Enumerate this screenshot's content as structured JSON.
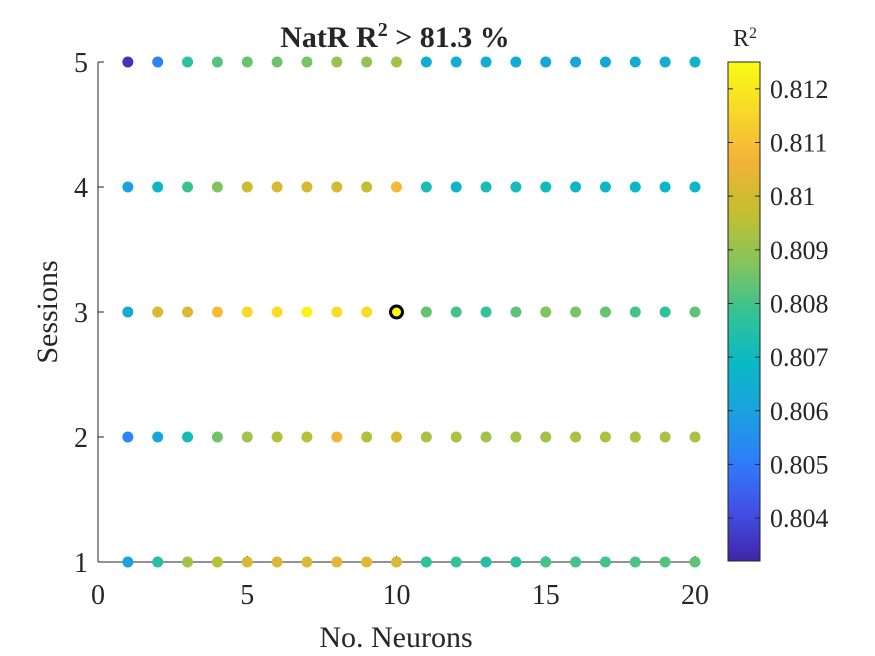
{
  "chart_data": {
    "type": "scatter",
    "title": {
      "prefix": "NatR R",
      "sup": "2",
      "suffix": " > 81.3 %"
    },
    "xlabel": "No. Neurons",
    "ylabel": "Sessions",
    "xlim": [
      0,
      20
    ],
    "ylim": [
      1,
      5
    ],
    "xticks": [
      "0",
      "5",
      "10",
      "15",
      "20"
    ],
    "yticks": [
      "1",
      "2",
      "3",
      "4",
      "5"
    ],
    "colorbar": {
      "label": "R",
      "label_sup": "2",
      "range": [
        0.8032,
        0.8125
      ],
      "ticks": [
        "0.804",
        "0.805",
        "0.806",
        "0.807",
        "0.808",
        "0.809",
        "0.81",
        "0.811",
        "0.812"
      ],
      "colormap": [
        "#3e26a8",
        "#4250e5",
        "#2f7dfa",
        "#1aa2df",
        "#09b9c3",
        "#36c393",
        "#88c45a",
        "#c4bf2f",
        "#f2b23a",
        "#f8d82a",
        "#f9fb14"
      ]
    },
    "grid": false,
    "highlighted_point": {
      "x": 10,
      "y": 3
    },
    "x": [
      1,
      2,
      3,
      4,
      5,
      6,
      7,
      8,
      9,
      10,
      11,
      12,
      13,
      14,
      15,
      16,
      17,
      18,
      19,
      20
    ],
    "series": [
      {
        "session": 1,
        "values": [
          0.806,
          0.8075,
          0.8092,
          0.8095,
          0.8101,
          0.8102,
          0.8102,
          0.8103,
          0.8103,
          0.8101,
          0.8077,
          0.8078,
          0.8075,
          0.8076,
          0.808,
          0.808,
          0.808,
          0.8081,
          0.8082,
          0.8083
        ]
      },
      {
        "session": 2,
        "values": [
          0.8053,
          0.8061,
          0.8072,
          0.8085,
          0.8092,
          0.8094,
          0.8095,
          0.8107,
          0.8094,
          0.8101,
          0.8093,
          0.8093,
          0.8092,
          0.8092,
          0.8092,
          0.8093,
          0.8093,
          0.8093,
          0.8093,
          0.8093
        ]
      },
      {
        "session": 3,
        "values": [
          0.8063,
          0.8102,
          0.8102,
          0.8108,
          0.8116,
          0.8117,
          0.8123,
          0.8117,
          0.8117,
          0.8124,
          0.8084,
          0.808,
          0.8078,
          0.8083,
          0.8087,
          0.8086,
          0.8084,
          0.808,
          0.8077,
          0.8083
        ]
      },
      {
        "session": 4,
        "values": [
          0.806,
          0.8068,
          0.8079,
          0.8087,
          0.8099,
          0.8101,
          0.81,
          0.81,
          0.8097,
          0.8108,
          0.8072,
          0.8068,
          0.8072,
          0.8072,
          0.807,
          0.8068,
          0.8068,
          0.8068,
          0.8068,
          0.8068
        ]
      },
      {
        "session": 5,
        "values": [
          0.8035,
          0.8052,
          0.8076,
          0.8082,
          0.8084,
          0.8085,
          0.8086,
          0.809,
          0.8089,
          0.8092,
          0.8064,
          0.8064,
          0.8064,
          0.8064,
          0.8062,
          0.8062,
          0.8062,
          0.8064,
          0.8064,
          0.8066
        ]
      }
    ]
  }
}
